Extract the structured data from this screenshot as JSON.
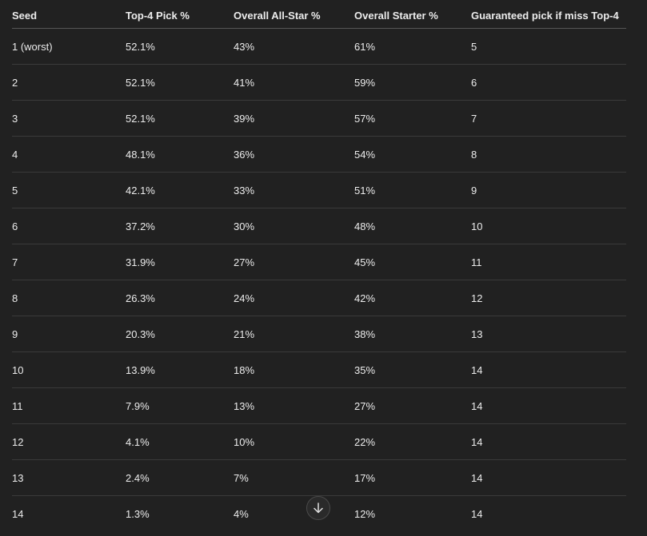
{
  "table": {
    "columns": [
      "Seed",
      "Top-4 Pick %",
      "Overall All-Star %",
      "Overall Starter %",
      "Guaranteed pick if miss Top-4"
    ],
    "rows": [
      [
        "1 (worst)",
        "52.1%",
        "43%",
        "61%",
        "5"
      ],
      [
        "2",
        "52.1%",
        "41%",
        "59%",
        "6"
      ],
      [
        "3",
        "52.1%",
        "39%",
        "57%",
        "7"
      ],
      [
        "4",
        "48.1%",
        "36%",
        "54%",
        "8"
      ],
      [
        "5",
        "42.1%",
        "33%",
        "51%",
        "9"
      ],
      [
        "6",
        "37.2%",
        "30%",
        "48%",
        "10"
      ],
      [
        "7",
        "31.9%",
        "27%",
        "45%",
        "11"
      ],
      [
        "8",
        "26.3%",
        "24%",
        "42%",
        "12"
      ],
      [
        "9",
        "20.3%",
        "21%",
        "38%",
        "13"
      ],
      [
        "10",
        "13.9%",
        "18%",
        "35%",
        "14"
      ],
      [
        "11",
        "7.9%",
        "13%",
        "27%",
        "14"
      ],
      [
        "12",
        "4.1%",
        "10%",
        "22%",
        "14"
      ],
      [
        "13",
        "2.4%",
        "7%",
        "17%",
        "14"
      ],
      [
        "14",
        "1.3%",
        "4%",
        "12%",
        "14"
      ]
    ]
  }
}
